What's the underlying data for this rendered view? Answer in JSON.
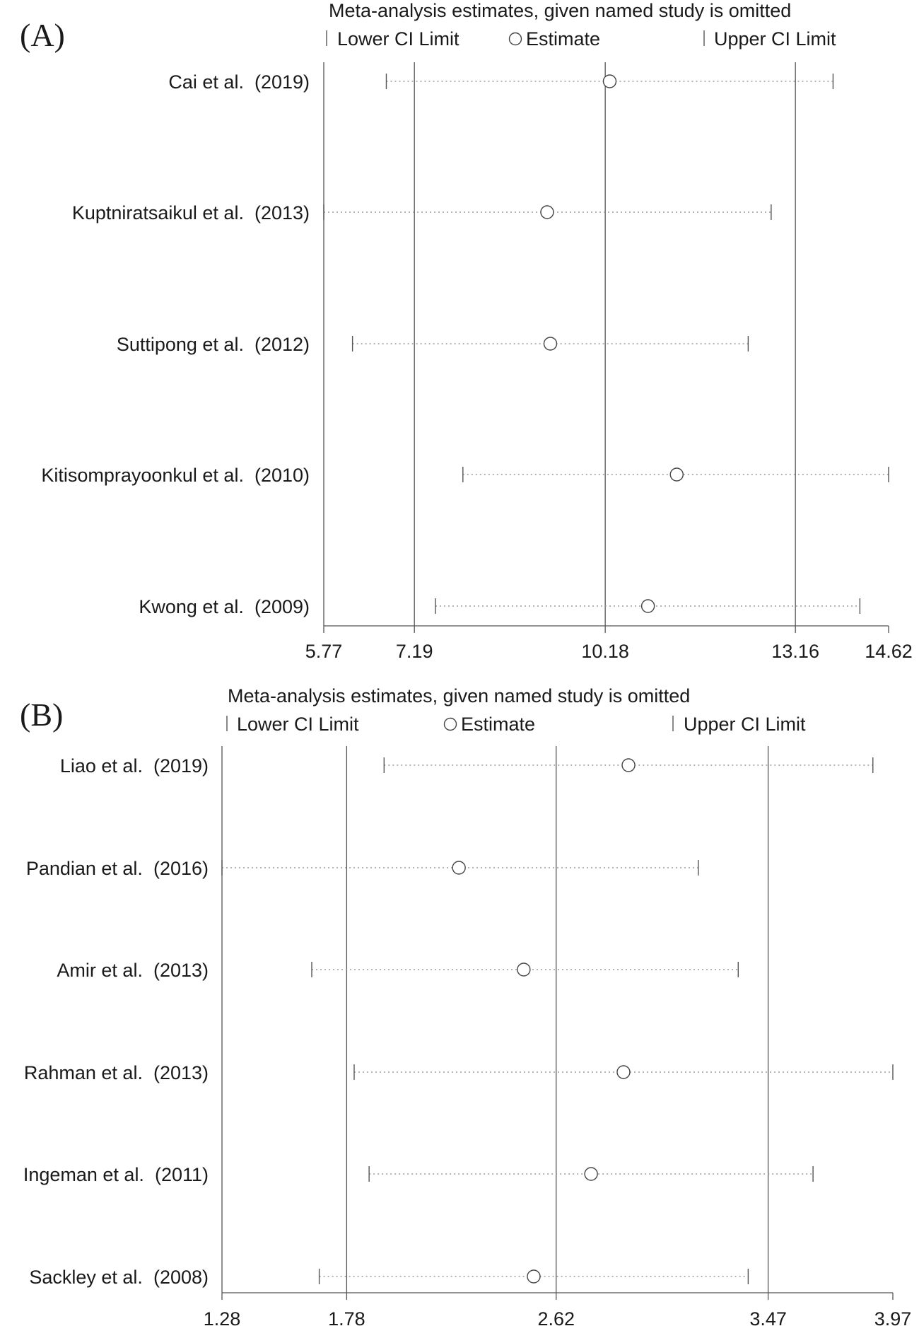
{
  "legend": {
    "lower_label": "Lower CI Limit",
    "estimate_label": "Estimate",
    "upper_label": "Upper CI Limit"
  },
  "chart_data": [
    {
      "type": "forest",
      "panel_label": "(A)",
      "title": "Meta-analysis estimates, given named study is omitted",
      "xlim": [
        5.77,
        14.62
      ],
      "xticks": [
        "5.77",
        "7.19",
        "10.18",
        "13.16",
        "14.62"
      ],
      "xtick_values": [
        5.77,
        7.19,
        10.18,
        13.16,
        14.62
      ],
      "reference_lines": [
        7.19,
        10.18,
        13.16
      ],
      "studies": [
        {
          "name": "Cai et al.",
          "year": "(2019)",
          "lower": 6.75,
          "estimate": 10.25,
          "upper": 13.75
        },
        {
          "name": "Kuptniratsaikul et al.",
          "year": "(2013)",
          "lower": 5.77,
          "estimate": 9.27,
          "upper": 12.78
        },
        {
          "name": "Suttipong et al.",
          "year": "(2012)",
          "lower": 6.22,
          "estimate": 9.32,
          "upper": 12.42
        },
        {
          "name": "Kitisomprayoonkul et al.",
          "year": "(2010)",
          "lower": 7.95,
          "estimate": 11.3,
          "upper": 14.62
        },
        {
          "name": "Kwong et al.",
          "year": "(2009)",
          "lower": 7.52,
          "estimate": 10.85,
          "upper": 14.17
        }
      ]
    },
    {
      "type": "forest",
      "panel_label": "(B)",
      "title": "Meta-analysis estimates, given named study is omitted",
      "xlim": [
        1.28,
        3.97
      ],
      "xticks": [
        "1.28",
        "1.78",
        "2.62",
        "3.47",
        "3.97"
      ],
      "xtick_values": [
        1.28,
        1.78,
        2.62,
        3.47,
        3.97
      ],
      "reference_lines": [
        1.78,
        2.62,
        3.47
      ],
      "studies": [
        {
          "name": "Liao et al.",
          "year": "(2019)",
          "lower": 1.93,
          "estimate": 2.91,
          "upper": 3.89
        },
        {
          "name": "Pandian et al.",
          "year": "(2016)",
          "lower": 1.28,
          "estimate": 2.23,
          "upper": 3.19
        },
        {
          "name": "Amir et al.",
          "year": "(2013)",
          "lower": 1.64,
          "estimate": 2.49,
          "upper": 3.35
        },
        {
          "name": "Rahman et al.",
          "year": "(2013)",
          "lower": 1.81,
          "estimate": 2.89,
          "upper": 3.97
        },
        {
          "name": "Ingeman et al.",
          "year": "(2011)",
          "lower": 1.87,
          "estimate": 2.76,
          "upper": 3.65
        },
        {
          "name": "Sackley et al.",
          "year": "(2008)",
          "lower": 1.67,
          "estimate": 2.53,
          "upper": 3.39
        }
      ]
    }
  ]
}
